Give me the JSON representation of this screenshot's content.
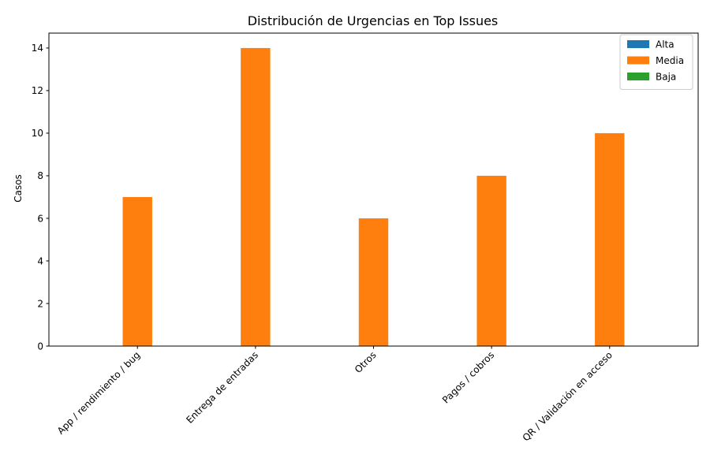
{
  "chart_data": {
    "type": "bar",
    "title": "Distribución de Urgencias en Top Issues",
    "xlabel": "",
    "ylabel": "Casos",
    "categories": [
      "App / rendimiento / bug",
      "Entrega de entradas",
      "Otros",
      "Pagos / cobros",
      "QR / Validación en acceso"
    ],
    "series": [
      {
        "name": "Alta",
        "color": "#1f77b4",
        "values": [
          0,
          0,
          0,
          0,
          0
        ]
      },
      {
        "name": "Media",
        "color": "#ff7f0e",
        "values": [
          7,
          14,
          6,
          8,
          10
        ]
      },
      {
        "name": "Baja",
        "color": "#2ca02c",
        "values": [
          0,
          0,
          0,
          0,
          0
        ]
      }
    ],
    "ylim": [
      0,
      14.7
    ],
    "yticks": [
      0,
      2,
      4,
      6,
      8,
      10,
      12,
      14
    ],
    "grid": false,
    "legend": "top-right"
  }
}
